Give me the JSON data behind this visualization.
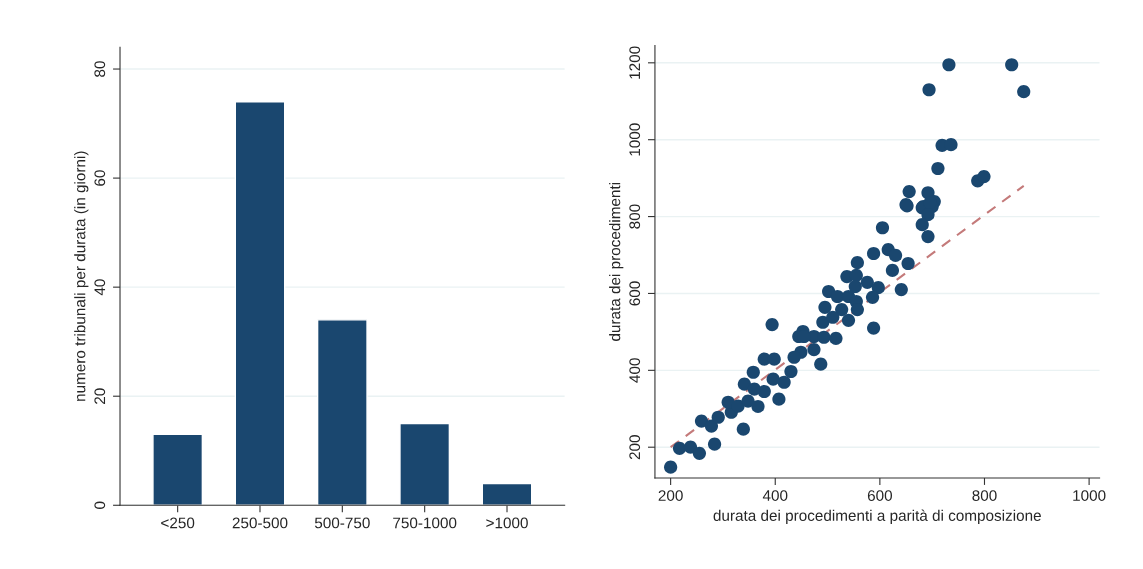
{
  "chart_data": [
    {
      "type": "bar",
      "ylabel": "numero tribunali per durata (in giorni)",
      "categories": [
        "<250",
        "250-500",
        "500-750",
        "750-1000",
        ">1000"
      ],
      "values": [
        13,
        74,
        34,
        15,
        4
      ],
      "color": "#1a476f",
      "ylim": [
        0,
        84
      ],
      "yticks": [
        0,
        20,
        40,
        60,
        80
      ],
      "grid": "y"
    },
    {
      "type": "scatter",
      "xlabel": "durata dei procedimenti a parità di composizione",
      "ylabel": "durata dei procedimenti",
      "xlim": [
        170,
        1020
      ],
      "ylim": [
        120,
        1245
      ],
      "xticks": [
        200,
        400,
        600,
        800,
        1000
      ],
      "yticks": [
        200,
        400,
        600,
        800,
        1000,
        1200
      ],
      "grid": "y",
      "marker": "circle",
      "series": [
        {
          "type": "scatter",
          "color": "#1a476f",
          "x": [
            732,
            694,
            852,
            875,
            719,
            736,
            711,
            787,
            799,
            656,
            692,
            650,
            683,
            704,
            700,
            652,
            681,
            696,
            692,
            681,
            692,
            605,
            588,
            616,
            630,
            654,
            624,
            641,
            557,
            537,
            555,
            576,
            553,
            597,
            586,
            502,
            519,
            540,
            555,
            557,
            527,
            495,
            491,
            510,
            540,
            394,
            588,
            453,
            445,
            474,
            493,
            516,
            200,
            217,
            238,
            255,
            259,
            284,
            278,
            291,
            316,
            310,
            329,
            339,
            348,
            341,
            358,
            367,
            379,
            398,
            379,
            407,
            417,
            430,
            449,
            455,
            474,
            487,
            396,
            436,
            360
          ],
          "values": [
            1195,
            1130,
            1195,
            1125,
            985,
            987,
            925,
            893,
            904,
            865,
            862,
            831,
            826,
            839,
            826,
            828,
            823,
            836,
            805,
            779,
            748,
            771,
            704,
            714,
            699,
            678,
            660,
            610,
            680,
            644,
            647,
            629,
            618,
            615,
            590,
            605,
            592,
            592,
            579,
            558,
            558,
            564,
            525,
            538,
            530,
            519,
            510,
            501,
            488,
            488,
            486,
            483,
            148,
            197,
            200,
            184,
            268,
            208,
            255,
            278,
            291,
            317,
            307,
            247,
            320,
            364,
            395,
            306,
            429,
            429,
            345,
            325,
            369,
            397,
            447,
            488,
            454,
            416,
            377,
            434,
            351
          ]
        },
        {
          "type": "line",
          "color": "#c47a7a",
          "line_style": "dashed",
          "marker": "none",
          "x": [
            200,
            875
          ],
          "values": [
            200,
            880
          ]
        }
      ]
    }
  ]
}
